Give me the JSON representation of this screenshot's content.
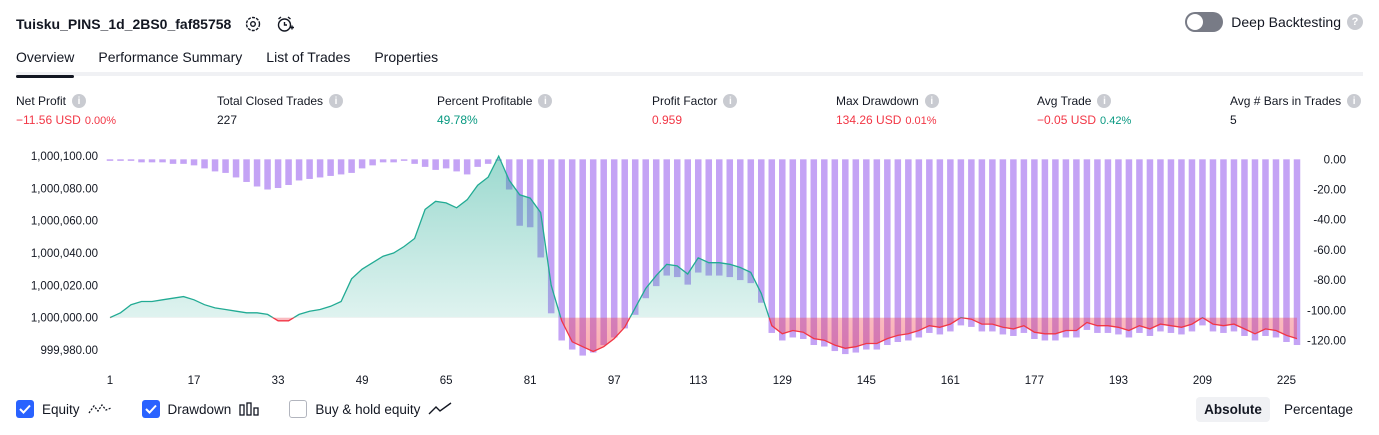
{
  "header": {
    "strategy_name": "Tuisku_PINS_1d_2BS0_faf85758",
    "deep_backtesting_label": "Deep Backtesting",
    "help_glyph": "?"
  },
  "tabs": [
    {
      "label": "Overview"
    },
    {
      "label": "Performance Summary"
    },
    {
      "label": "List of Trades"
    },
    {
      "label": "Properties"
    }
  ],
  "metrics": [
    {
      "label": "Net Profit",
      "value": "−11.56 USD",
      "sub": "0.00%"
    },
    {
      "label": "Total Closed Trades",
      "value": "227",
      "sub": ""
    },
    {
      "label": "Percent Profitable",
      "value": "49.78%",
      "sub": ""
    },
    {
      "label": "Profit Factor",
      "value": "0.959",
      "sub": ""
    },
    {
      "label": "Max Drawdown",
      "value": "134.26 USD",
      "sub": "0.01%"
    },
    {
      "label": "Avg Trade",
      "value": "−0.05 USD",
      "sub": "0.42%"
    },
    {
      "label": "Avg # Bars in Trades",
      "value": "5",
      "sub": ""
    }
  ],
  "info_glyph": "i",
  "legend": {
    "equity_label": "Equity",
    "drawdown_label": "Drawdown",
    "buyhold_label": "Buy & hold equity"
  },
  "mode": {
    "absolute_label": "Absolute",
    "percentage_label": "Percentage"
  },
  "colors": {
    "equity_positive": "#22ab94",
    "equity_negative": "#f23645",
    "drawdown_bar": "#c4a3f5",
    "accent": "#2962ff"
  },
  "chart_data": {
    "type": "area",
    "x_ticks": [
      "1",
      "17",
      "33",
      "49",
      "65",
      "81",
      "97",
      "113",
      "129",
      "145",
      "161",
      "177",
      "193",
      "209",
      "225"
    ],
    "y_left_ticks": [
      "1,000,100.00",
      "1,000,080.00",
      "1,000,060.00",
      "1,000,040.00",
      "1,000,020.00",
      "1,000,000.00",
      "999,980.00"
    ],
    "y_right_ticks": [
      "0.00",
      "-20.00",
      "-40.00",
      "-60.00",
      "-80.00",
      "-100.00",
      "-120.00"
    ],
    "y_left_range": [
      999975,
      1000105
    ],
    "y_right_range": [
      -131.6,
      7.5
    ],
    "x_range": [
      1,
      227
    ],
    "baseline": 1000000,
    "series": [
      {
        "name": "Equity",
        "x": [
          1,
          3,
          5,
          7,
          9,
          11,
          13,
          15,
          17,
          19,
          21,
          23,
          25,
          27,
          29,
          31,
          33,
          35,
          37,
          39,
          41,
          43,
          45,
          47,
          49,
          51,
          53,
          55,
          57,
          59,
          61,
          63,
          65,
          67,
          69,
          71,
          73,
          75,
          77,
          79,
          81,
          83,
          85,
          87,
          89,
          91,
          93,
          95,
          97,
          99,
          101,
          103,
          105,
          107,
          109,
          111,
          113,
          115,
          117,
          119,
          121,
          123,
          125,
          127,
          129,
          131,
          133,
          135,
          137,
          139,
          141,
          143,
          145,
          147,
          149,
          151,
          153,
          155,
          157,
          159,
          161,
          163,
          165,
          167,
          169,
          171,
          173,
          175,
          177,
          179,
          181,
          183,
          185,
          187,
          189,
          191,
          193,
          195,
          197,
          199,
          201,
          203,
          205,
          207,
          209,
          211,
          213,
          215,
          217,
          219,
          221,
          223,
          225,
          227
        ],
        "values": [
          1000000,
          1000003,
          1000008,
          1000010,
          1000010,
          1000011,
          1000012,
          1000013,
          1000011,
          1000008,
          1000006,
          1000005,
          1000004,
          1000003,
          1000003,
          1000002,
          999998,
          999998,
          1000002,
          1000004,
          1000005,
          1000007,
          1000010,
          1000024,
          1000030,
          1000034,
          1000038,
          1000040,
          1000044,
          1000049,
          1000067,
          1000072,
          1000071,
          1000068,
          1000073,
          1000082,
          1000087,
          1000100,
          1000085,
          1000076,
          1000074,
          1000065,
          1000020,
          999998,
          999985,
          999982,
          999979,
          999982,
          999987,
          999994,
          1000006,
          1000018,
          1000026,
          1000033,
          1000032,
          1000027,
          1000037,
          1000034,
          1000034,
          1000033,
          1000031,
          1000028,
          1000015,
          999995,
          999990,
          999992,
          999991,
          999987,
          999986,
          999983,
          999981,
          999982,
          999984,
          999984,
          999987,
          999989,
          999990,
          999992,
          999995,
          999994,
          999996,
          1000000,
          999999,
          999996,
          999996,
          999994,
          999993,
          999995,
          999991,
          999990,
          999990,
          999992,
          999992,
          999997,
          999995,
          999995,
          999994,
          999992,
          999995,
          999993,
          999996,
          999995,
          999994,
          999996,
          1000000,
          999996,
          999995,
          999996,
          999993,
          999990,
          999993,
          999992,
          999989,
          999987
        ]
      },
      {
        "name": "Drawdown",
        "x": [
          1,
          3,
          5,
          7,
          9,
          11,
          13,
          15,
          17,
          19,
          21,
          23,
          25,
          27,
          29,
          31,
          33,
          35,
          37,
          39,
          41,
          43,
          45,
          47,
          49,
          51,
          53,
          55,
          57,
          59,
          61,
          63,
          65,
          67,
          69,
          71,
          73,
          75,
          77,
          79,
          81,
          83,
          85,
          87,
          89,
          91,
          93,
          95,
          97,
          99,
          101,
          103,
          105,
          107,
          109,
          111,
          113,
          115,
          117,
          119,
          121,
          123,
          125,
          127,
          129,
          131,
          133,
          135,
          137,
          139,
          141,
          143,
          145,
          147,
          149,
          151,
          153,
          155,
          157,
          159,
          161,
          163,
          165,
          167,
          169,
          171,
          173,
          175,
          177,
          179,
          181,
          183,
          185,
          187,
          189,
          191,
          193,
          195,
          197,
          199,
          201,
          203,
          205,
          207,
          209,
          211,
          213,
          215,
          217,
          219,
          221,
          223,
          225,
          227
        ],
        "values": [
          0,
          0,
          -1,
          -2,
          -2,
          -2,
          -3,
          -3,
          -4,
          -6,
          -8,
          -9,
          -12,
          -15,
          -18,
          -20,
          -19,
          -17,
          -14,
          -13,
          -12,
          -11,
          -10,
          -9,
          -6,
          -4,
          -2,
          -2,
          -1,
          -3,
          -5,
          -7,
          -6,
          -8,
          -10,
          -5,
          -3,
          0,
          -20,
          -44,
          -45,
          -65,
          -102,
          -120,
          -126,
          -130,
          -128,
          -123,
          -118,
          -112,
          -103,
          -92,
          -84,
          -77,
          -78,
          -83,
          -75,
          -77,
          -77,
          -78,
          -80,
          -82,
          -95,
          -115,
          -120,
          -118,
          -119,
          -123,
          -124,
          -127,
          -129,
          -128,
          -126,
          -126,
          -123,
          -121,
          -120,
          -118,
          -115,
          -116,
          -114,
          -110,
          -111,
          -114,
          -114,
          -116,
          -117,
          -115,
          -119,
          -120,
          -120,
          -118,
          -118,
          -113,
          -115,
          -115,
          -116,
          -118,
          -115,
          -117,
          -114,
          -115,
          -116,
          -114,
          -110,
          -114,
          -115,
          -114,
          -117,
          -120,
          -117,
          -118,
          -121,
          -123
        ]
      }
    ]
  }
}
